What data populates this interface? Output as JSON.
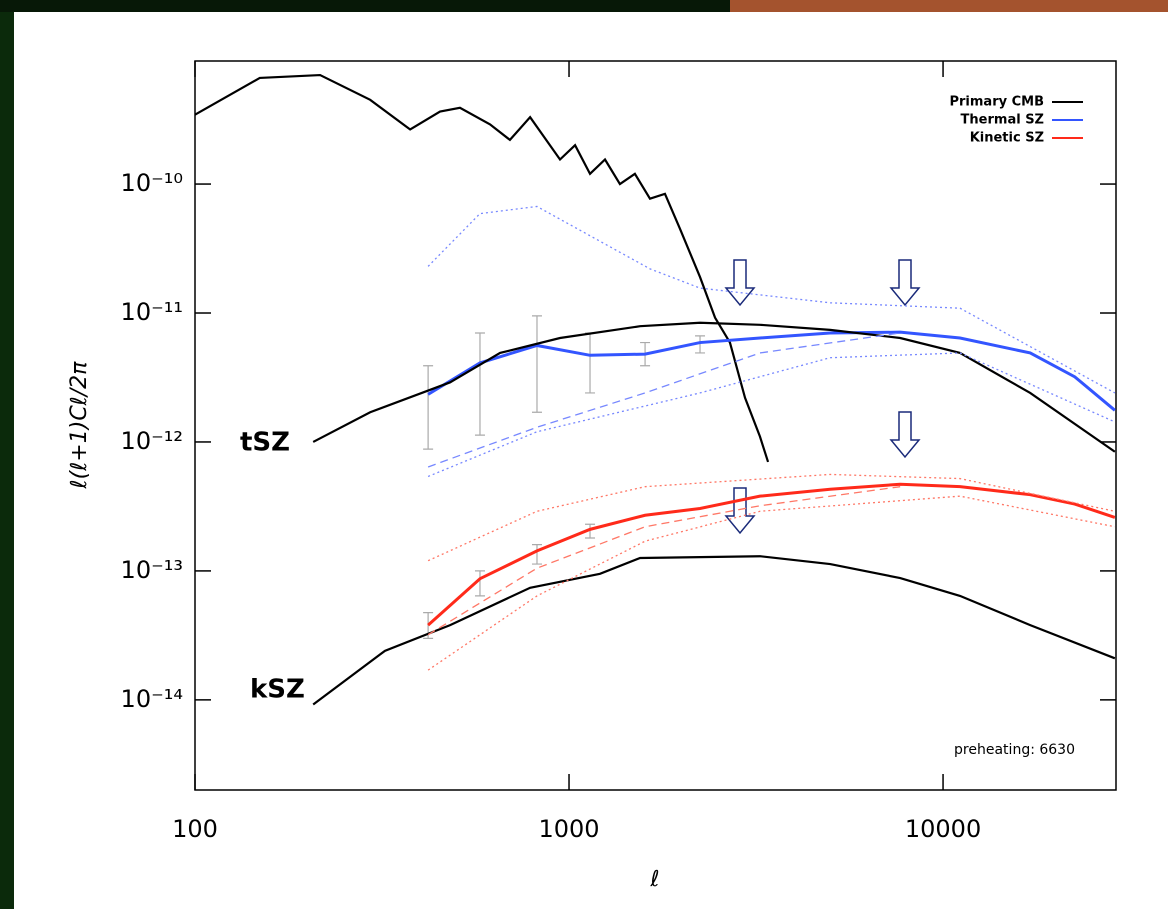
{
  "chart_data": {
    "type": "line",
    "y_label": "ℓ(ℓ+1)Cℓ/2π",
    "x_label": "ℓ",
    "log_x": true,
    "log_y": true,
    "xlim": [
      100,
      29000
    ],
    "ylim": [
      2e-15,
      9e-10
    ],
    "xticks": [
      100,
      1000,
      10000
    ],
    "yticks": [
      {
        "value": 1e-14,
        "label": "10⁻¹⁴"
      },
      {
        "value": 1e-13,
        "label": "10⁻¹³"
      },
      {
        "value": 1e-12,
        "label": "10⁻¹²"
      },
      {
        "value": 1e-11,
        "label": "10⁻¹¹"
      },
      {
        "value": 1e-10,
        "label": "10⁻¹⁰"
      }
    ],
    "legend": "upper right",
    "annotations": [
      "tSZ",
      "kSZ",
      "preheating: 6630"
    ],
    "series": [
      {
        "name": "Primary CMB",
        "color": "#000000",
        "x": [
          100,
          149,
          216,
          294,
          376,
          452,
          511,
          615,
          695,
          787,
          946,
          1038,
          1138,
          1248,
          1368,
          1500,
          1646,
          1805,
          1980,
          2240,
          2457,
          2693,
          2955,
          3240,
          3405
        ],
        "values": [
          3.45e-10,
          6.65e-10,
          7e-10,
          4.5e-10,
          2.65e-10,
          3.65e-10,
          3.9e-10,
          2.9e-10,
          2.2e-10,
          3.3e-10,
          1.55e-10,
          2e-10,
          1.2e-10,
          1.55e-10,
          1e-10,
          1.2e-10,
          7.7e-11,
          8.4e-11,
          4.5e-11,
          1.9e-11,
          9.2e-12,
          5.9e-12,
          2.2e-12,
          1.1e-12,
          7e-13
        ]
      },
      {
        "name": "Thermal SZ",
        "color": "#3355ff",
        "x": [
          420,
          578,
          821,
          1138,
          1597,
          2240,
          3240,
          4990,
          7680,
          11100,
          17100,
          22500,
          28800
        ],
        "values": [
          2.34e-12,
          4.1e-12,
          5.6e-12,
          4.7e-12,
          4.8e-12,
          5.9e-12,
          6.4e-12,
          7e-12,
          7.1e-12,
          6.4e-12,
          4.9e-12,
          3.2e-12,
          1.76e-12
        ]
      },
      {
        "name": "Kinetic SZ",
        "color": "#ff2a1a",
        "x": [
          420,
          578,
          821,
          1138,
          1597,
          2240,
          3240,
          4990,
          7680,
          11100,
          17100,
          22500,
          28800
        ],
        "values": [
          3.8e-14,
          8.7e-14,
          1.43e-13,
          2.1e-13,
          2.7e-13,
          3.05e-13,
          3.8e-13,
          4.3e-13,
          4.7e-13,
          4.5e-13,
          3.9e-13,
          3.3e-13,
          2.6e-13
        ]
      },
      {
        "color": "#000000",
        "x": [
          207,
          294,
          481,
          654,
          946,
          1549,
          2240,
          3240,
          4990,
          7680,
          11100,
          17100,
          28800
        ],
        "values": [
          1e-12,
          1.7e-12,
          2.9e-12,
          4.9e-12,
          6.4e-12,
          7.9e-12,
          8.4e-12,
          8.1e-12,
          7.4e-12,
          6.4e-12,
          4.9e-12,
          2.4e-12,
          8.4e-13
        ]
      },
      {
        "color": "#000000",
        "x": [
          207,
          322,
          481,
          787,
          1210,
          1549,
          3240,
          4990,
          7680,
          11100,
          17100,
          28800
        ],
        "values": [
          9.2e-15,
          2.4e-14,
          3.8e-14,
          7.4e-14,
          9.5e-14,
          1.26e-13,
          1.3e-13,
          1.13e-13,
          8.8e-14,
          6.4e-14,
          3.8e-14,
          2.1e-14
        ]
      },
      {
        "color": "#7788ff",
        "dash": "dotted",
        "x": [
          420,
          578,
          821,
          1646,
          2240,
          4990,
          11100,
          28800
        ],
        "values": [
          2.3e-11,
          5.9e-11,
          6.7e-11,
          2.2e-11,
          1.56e-11,
          1.2e-11,
          1.09e-11,
          2.4e-12
        ]
      },
      {
        "color": "#7788ff",
        "dash": "dashed",
        "x": [
          420,
          821,
          1597,
          3240,
          7680
        ],
        "values": [
          6.4e-13,
          1.3e-12,
          2.4e-12,
          4.9e-12,
          7e-12
        ]
      },
      {
        "color": "#7788ff",
        "dash": "dotted",
        "x": [
          420,
          821,
          2240,
          4990,
          11100,
          28800
        ],
        "values": [
          5.4e-13,
          1.2e-12,
          2.4e-12,
          4.5e-12,
          4.9e-12,
          1.43e-12
        ]
      },
      {
        "color": "#ff7766",
        "dash": "dotted",
        "x": [
          420,
          821,
          1597,
          4990,
          11100,
          28800
        ],
        "values": [
          1.2e-13,
          2.9e-13,
          4.5e-13,
          5.6e-13,
          5.2e-13,
          2.9e-13
        ]
      },
      {
        "color": "#ff7766",
        "dash": "dashed",
        "x": [
          420,
          821,
          1597,
          3240,
          7680
        ],
        "values": [
          3.2e-14,
          1.05e-13,
          2.2e-13,
          3.2e-13,
          4.5e-13
        ]
      },
      {
        "color": "#ff7766",
        "dash": "dotted",
        "x": [
          420,
          821,
          1597,
          3240,
          11100,
          28800
        ],
        "values": [
          1.7e-14,
          6.4e-14,
          1.7e-13,
          2.9e-13,
          3.8e-13,
          2.2e-13
        ]
      }
    ],
    "error_bars": {
      "color": "#aaaaaa",
      "x": [
        420,
        578,
        821,
        1138,
        1597,
        2240,
        420,
        578,
        821,
        1138
      ],
      "low": [
        8.8e-13,
        1.13e-12,
        1.7e-12,
        2.4e-12,
        3.9e-12,
        4.9e-12,
        3e-14,
        6.4e-14,
        1.13e-13,
        1.8e-13
      ],
      "high": [
        3.9e-12,
        7e-12,
        9.5e-12,
        7e-12,
        5.9e-12,
        6.65e-12,
        4.75e-14,
        1e-13,
        1.6e-13,
        2.3e-13
      ]
    }
  }
}
